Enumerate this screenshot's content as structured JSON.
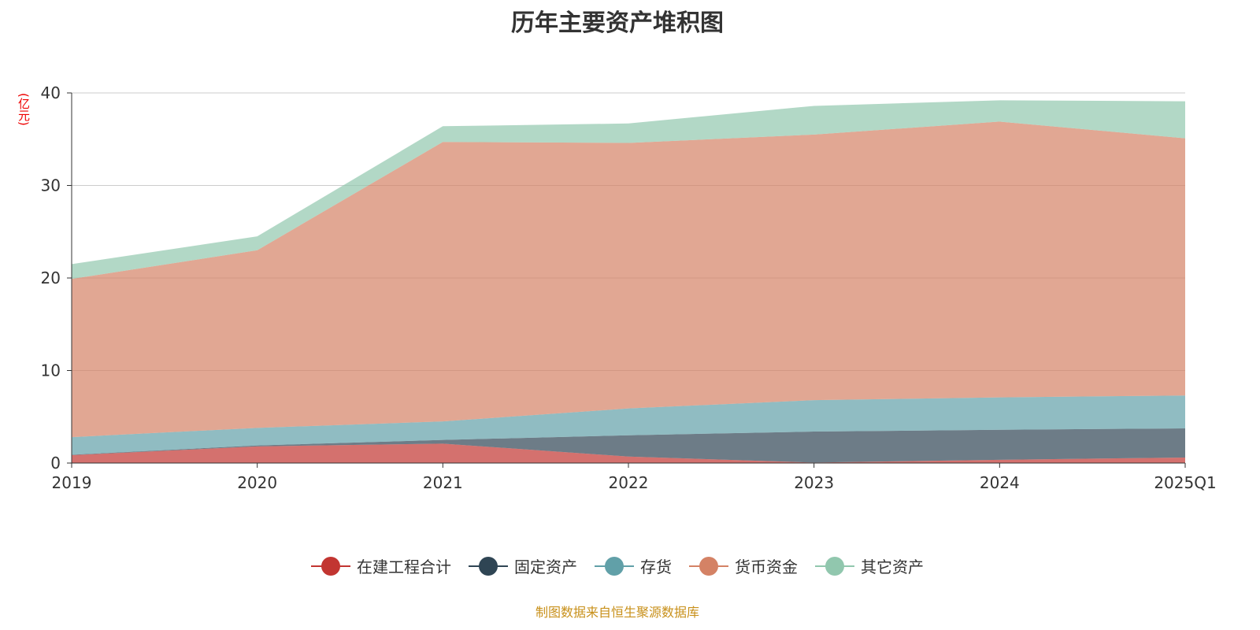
{
  "chart_data": {
    "type": "area",
    "stacked": true,
    "title": "历年主要资产堆积图",
    "ylabel": "(亿元)",
    "xlabel": "",
    "categories": [
      "2019",
      "2020",
      "2021",
      "2022",
      "2023",
      "2024",
      "2025Q1"
    ],
    "ylim": [
      0,
      40
    ],
    "yticks": [
      0,
      10,
      20,
      30,
      40
    ],
    "grid": true,
    "legend_position": "bottom",
    "series": [
      {
        "name": "在建工程合计",
        "color": "#c23531",
        "values": [
          0.85,
          1.8,
          2.1,
          0.7,
          0.05,
          0.35,
          0.6
        ]
      },
      {
        "name": "固定资产",
        "color": "#2f4554",
        "values": [
          0.05,
          0.1,
          0.4,
          2.3,
          3.35,
          3.25,
          3.15
        ]
      },
      {
        "name": "存货",
        "color": "#61a0a8",
        "values": [
          1.9,
          1.9,
          2.0,
          2.9,
          3.4,
          3.5,
          3.55
        ]
      },
      {
        "name": "货币资金",
        "color": "#d48265",
        "values": [
          17.1,
          19.2,
          30.2,
          28.7,
          28.7,
          29.8,
          27.8
        ]
      },
      {
        "name": "其它资产",
        "color": "#91c7ae",
        "values": [
          1.6,
          1.5,
          1.7,
          2.1,
          3.1,
          2.3,
          4.0
        ]
      }
    ]
  },
  "source": "制图数据来自恒生聚源数据库"
}
